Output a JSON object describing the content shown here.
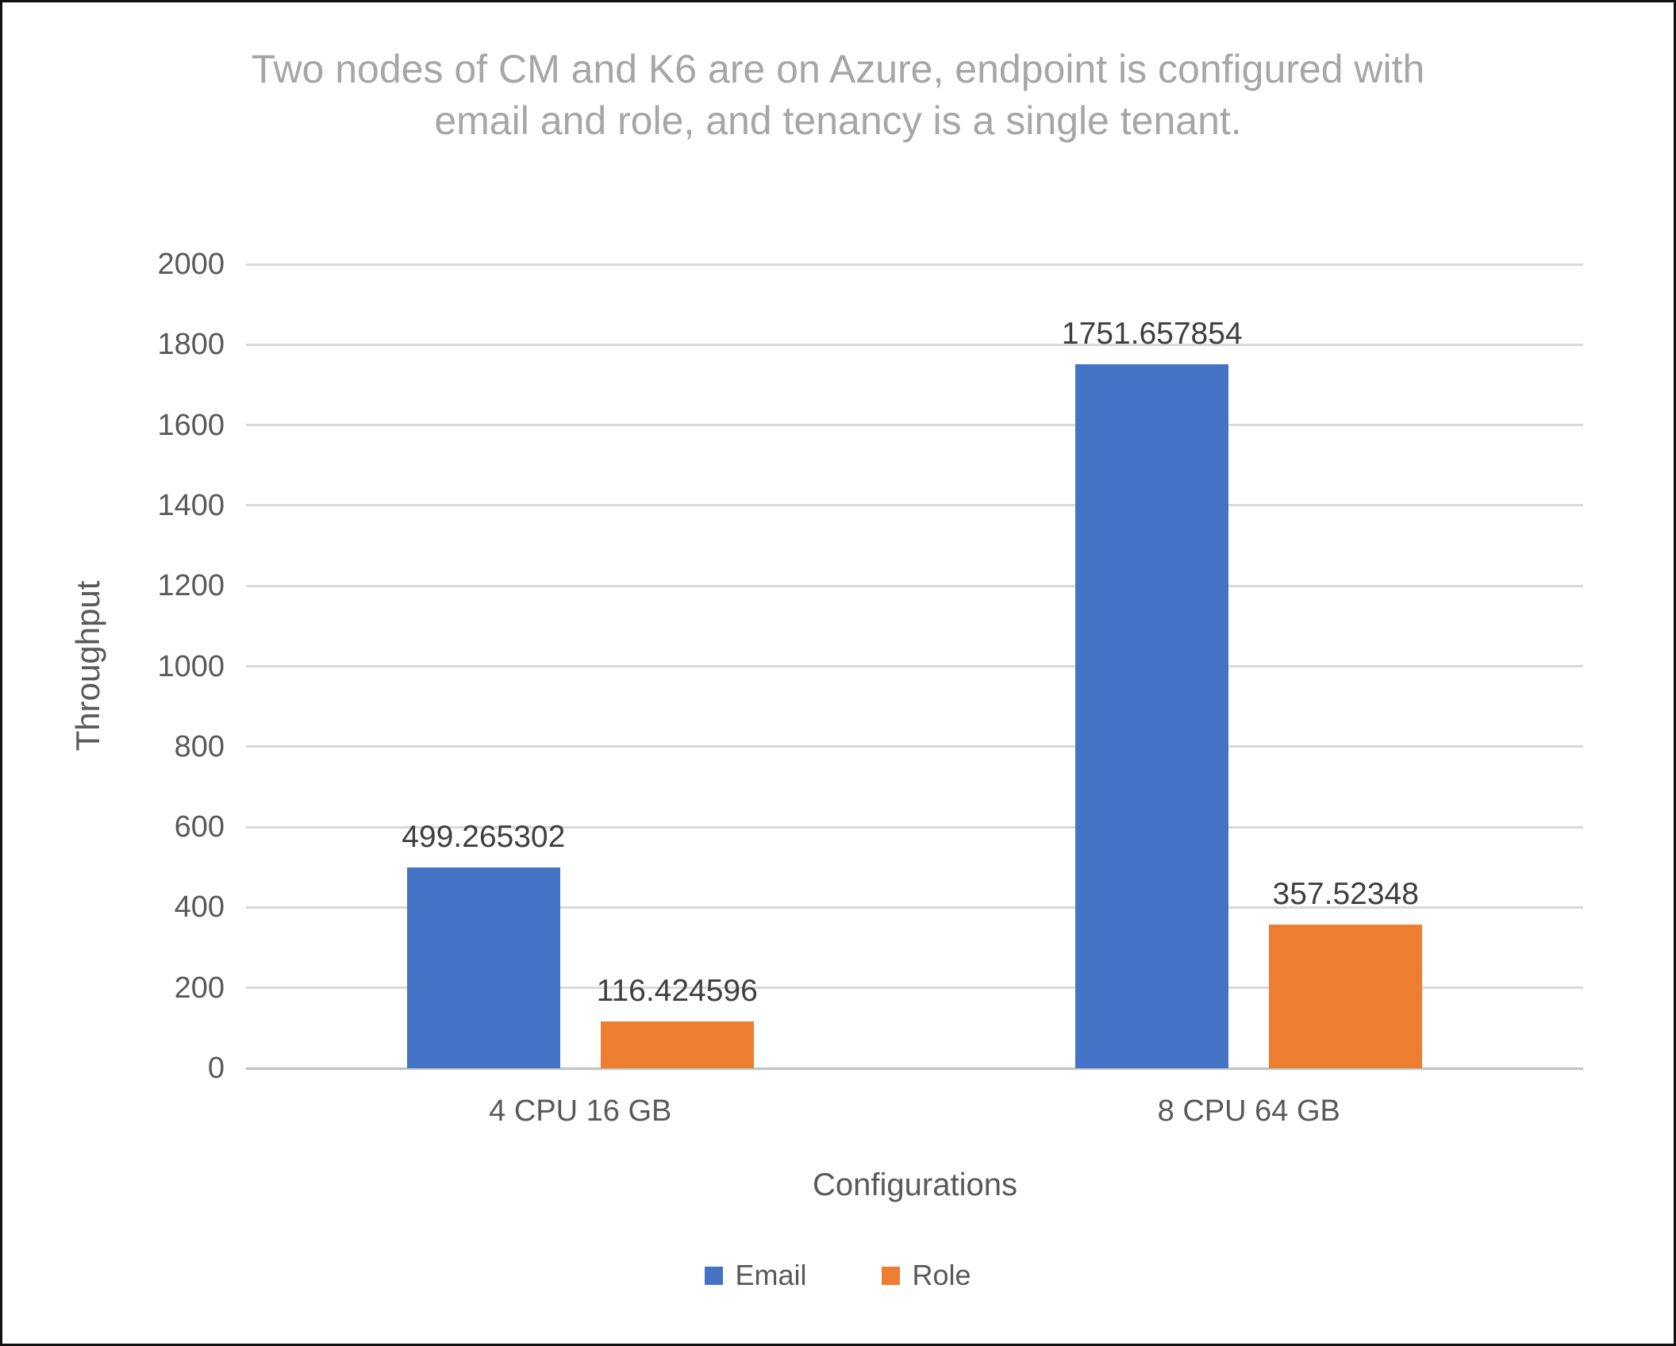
{
  "chart_data": {
    "type": "bar",
    "title": "Two nodes of CM and K6 are on Azure, endpoint is configured with email and role, and tenancy is a single tenant.",
    "xlabel": "Configurations",
    "ylabel": "Throughput",
    "categories": [
      "4 CPU 16 GB",
      "8 CPU 64 GB"
    ],
    "series": [
      {
        "name": "Email",
        "color": "#4472C4",
        "values": [
          499.265302,
          1751.657854
        ],
        "labels": [
          "499.265302",
          "1751.657854"
        ]
      },
      {
        "name": "Role",
        "color": "#ED7D31",
        "values": [
          116.424596,
          357.52348
        ],
        "labels": [
          "116.424596",
          "357.52348"
        ]
      }
    ],
    "ylim": [
      0,
      2000
    ],
    "yticks": [
      0,
      200,
      400,
      600,
      800,
      1000,
      1200,
      1400,
      1600,
      1800,
      2000
    ],
    "grid": true,
    "legend_position": "bottom",
    "data_labels_shown": true,
    "title_color": "#A6A6A6",
    "axis_text_color": "#595959",
    "data_label_color": "#3F3F3F",
    "gridline_color": "#D9D9D9"
  }
}
